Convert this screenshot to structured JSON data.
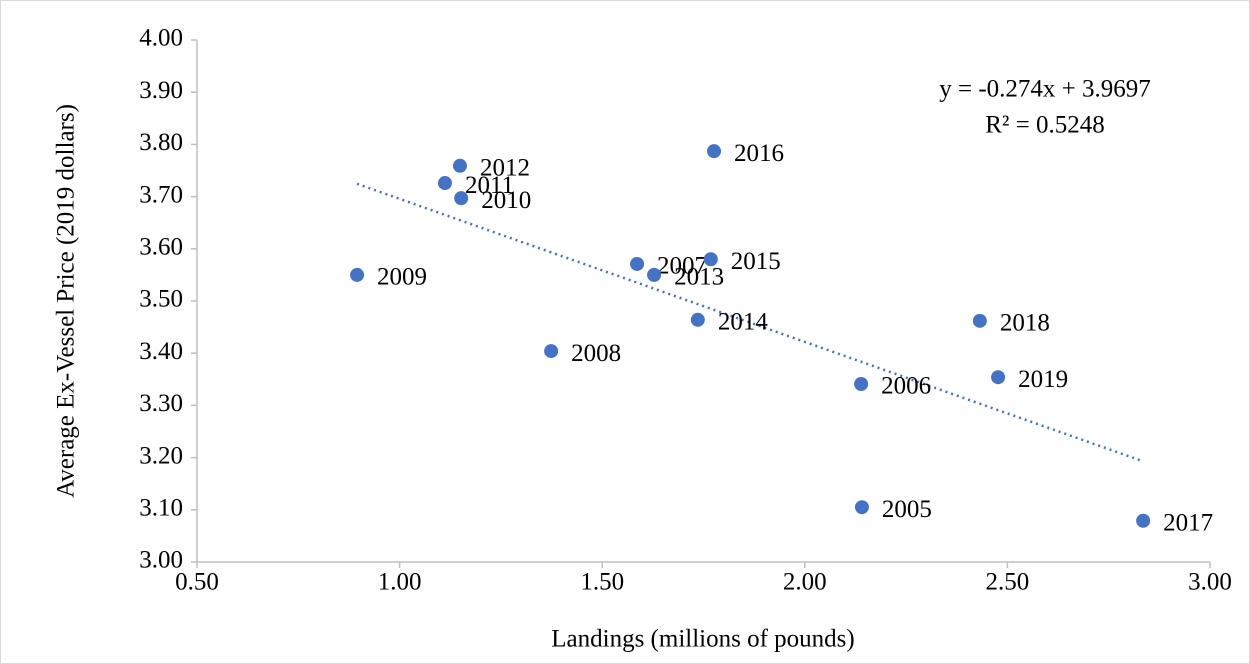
{
  "chart_data": {
    "type": "scatter",
    "x_label": "Landings (millions of pounds)",
    "y_label": "Average Ex-Vessel Price (2019 dollars)",
    "x": [
      2.141,
      2.139,
      1.586,
      1.374,
      0.895,
      1.152,
      1.112,
      1.149,
      1.628,
      1.736,
      1.768,
      1.776,
      2.835,
      2.432,
      2.477
    ],
    "values": [
      3.105,
      3.341,
      3.571,
      3.404,
      3.55,
      3.697,
      3.726,
      3.759,
      3.55,
      3.464,
      3.58,
      3.787,
      3.079,
      3.462,
      3.354
    ],
    "point_labels": [
      "2005",
      "2006",
      "2007",
      "2008",
      "2009",
      "2010",
      "2011",
      "2012",
      "2013",
      "2014",
      "2015",
      "2016",
      "2017",
      "2018",
      "2019"
    ],
    "color": "#4472c4",
    "xlim": [
      0.5,
      3.0
    ],
    "xticks": [
      {
        "value": 0.5,
        "label": "0.50"
      },
      {
        "value": 1.0,
        "label": "1.00"
      },
      {
        "value": 1.5,
        "label": "1.50"
      },
      {
        "value": 2.0,
        "label": "2.00"
      },
      {
        "value": 2.5,
        "label": "2.50"
      },
      {
        "value": 3.0,
        "label": "3.00"
      }
    ],
    "ylim": [
      3.0,
      4.0
    ],
    "yticks": [
      {
        "value": 3.0,
        "label": "3.00"
      },
      {
        "value": 3.1,
        "label": "3.10"
      },
      {
        "value": 3.2,
        "label": "3.20"
      },
      {
        "value": 3.3,
        "label": "3.30"
      },
      {
        "value": 3.4,
        "label": "3.40"
      },
      {
        "value": 3.5,
        "label": "3.50"
      },
      {
        "value": 3.6,
        "label": "3.60"
      },
      {
        "value": 3.7,
        "label": "3.70"
      },
      {
        "value": 3.8,
        "label": "3.80"
      },
      {
        "value": 3.9,
        "label": "3.90"
      },
      {
        "value": 4.0,
        "label": "4.00"
      }
    ],
    "grid": false,
    "trendline": {
      "slope": -0.274,
      "intercept": 3.9697,
      "label": "y = -0.274x + 3.9697",
      "r2_label": "R² = 0.5248"
    }
  }
}
